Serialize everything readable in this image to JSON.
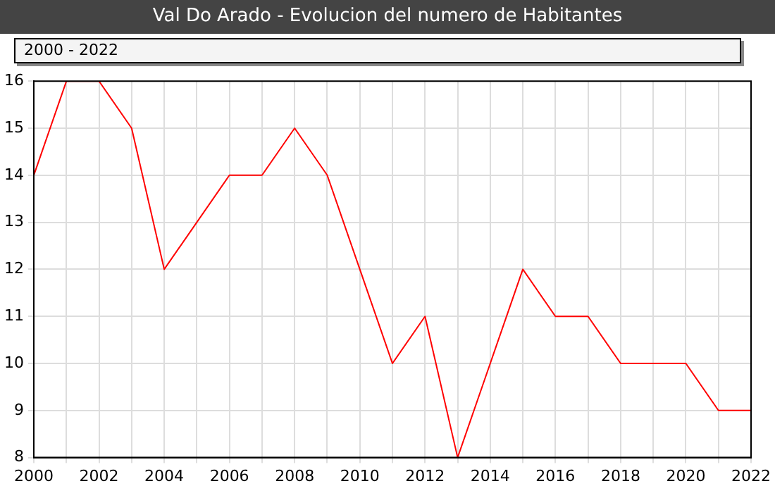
{
  "chart_data": {
    "type": "line",
    "title": "Val Do Arado - Evolucion del numero de Habitantes",
    "subtitle": "2000 - 2022",
    "x": [
      2000,
      2001,
      2002,
      2003,
      2004,
      2005,
      2006,
      2007,
      2008,
      2009,
      2010,
      2011,
      2012,
      2013,
      2014,
      2015,
      2016,
      2017,
      2018,
      2019,
      2020,
      2021,
      2022
    ],
    "series": [
      {
        "color": "#ff0000",
        "values": [
          14,
          16,
          16,
          15,
          12,
          13,
          14,
          14,
          15,
          14,
          12,
          10,
          11,
          8,
          10,
          12,
          11,
          11,
          10,
          10,
          10,
          9,
          9
        ]
      }
    ],
    "xlim": [
      2000,
      2022
    ],
    "xticks": [
      2000,
      {
        "value": 2001,
        "label": null
      },
      2002,
      {
        "value": 2003,
        "label": null
      },
      2004,
      {
        "value": 2005,
        "label": null
      },
      2006,
      {
        "value": 2007,
        "label": null
      },
      2008,
      {
        "value": 2009,
        "label": null
      },
      2010,
      {
        "value": 2011,
        "label": null
      },
      2012,
      {
        "value": 2013,
        "label": null
      },
      2014,
      {
        "value": 2015,
        "label": null
      },
      2016,
      {
        "value": 2017,
        "label": null
      },
      2018,
      {
        "value": 2019,
        "label": null
      },
      2020,
      {
        "value": 2021,
        "label": null
      },
      2022
    ],
    "ylim": [
      8,
      16
    ],
    "yticks": [
      8,
      9,
      10,
      11,
      12,
      13,
      14,
      15,
      16
    ],
    "grid": true,
    "legend": false,
    "marker": "none",
    "line_style": "solid"
  }
}
